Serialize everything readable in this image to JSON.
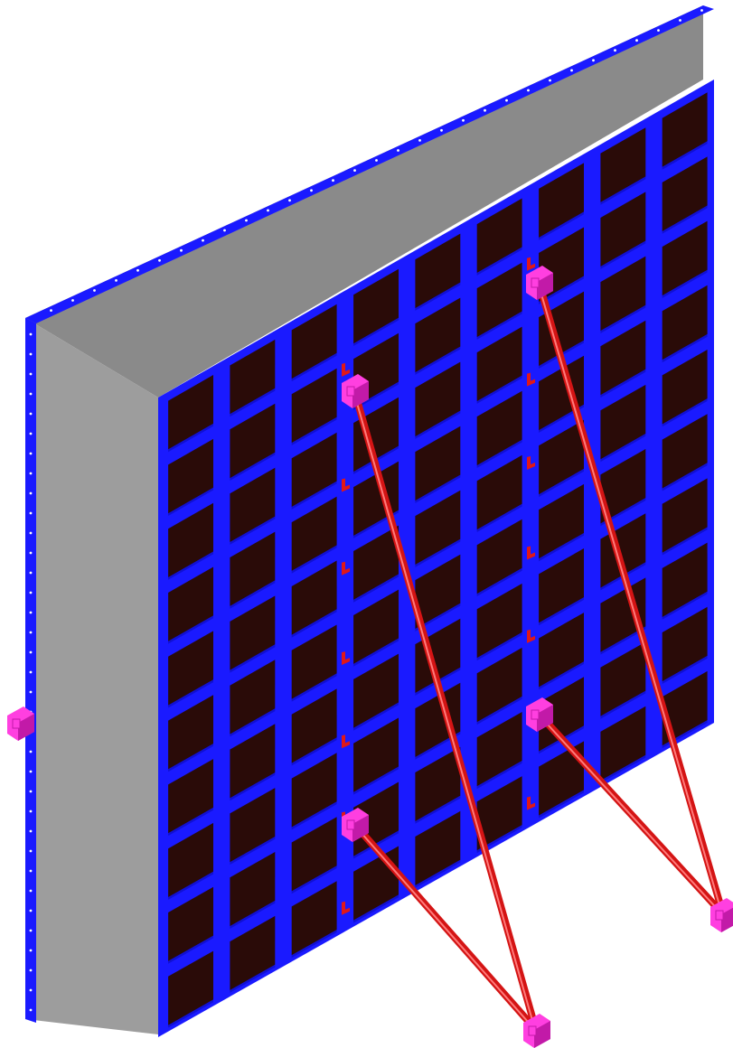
{
  "colors": {
    "background": "#ffffff",
    "frame_blue": "#1a1aff",
    "frame_blue_dark": "#0a0ab8",
    "panel_dark": "#2a0b08",
    "top_gray": "#8a8a8a",
    "side_gray": "#9d9d9d",
    "brace_red": "#d41414",
    "brace_highlight": "#ff7a7a",
    "clamp_red": "#e01818",
    "bracket_magenta": "#ff3fe0",
    "bracket_magenta_dark": "#c21aa8",
    "hole_white": "#ffffff"
  },
  "structure": {
    "panel_columns": 9,
    "panel_rows": 10,
    "vertical_clamp_column_lines": [
      3,
      6
    ],
    "brace_count": 4
  }
}
